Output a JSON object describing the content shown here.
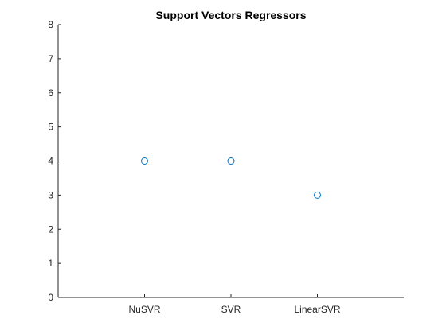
{
  "chart_data": {
    "type": "scatter",
    "title": "Support Vectors Regressors",
    "xlabel": "",
    "ylabel": "",
    "categories": [
      "NuSVR",
      "SVR",
      "LinearSVR"
    ],
    "values": [
      4,
      4,
      3
    ],
    "ylim": [
      0,
      8
    ],
    "yticks": [
      "0",
      "1",
      "2",
      "3",
      "4",
      "5",
      "6",
      "7",
      "8"
    ],
    "grid": false,
    "marker": "open-circle",
    "series_color": "#0072BD"
  }
}
